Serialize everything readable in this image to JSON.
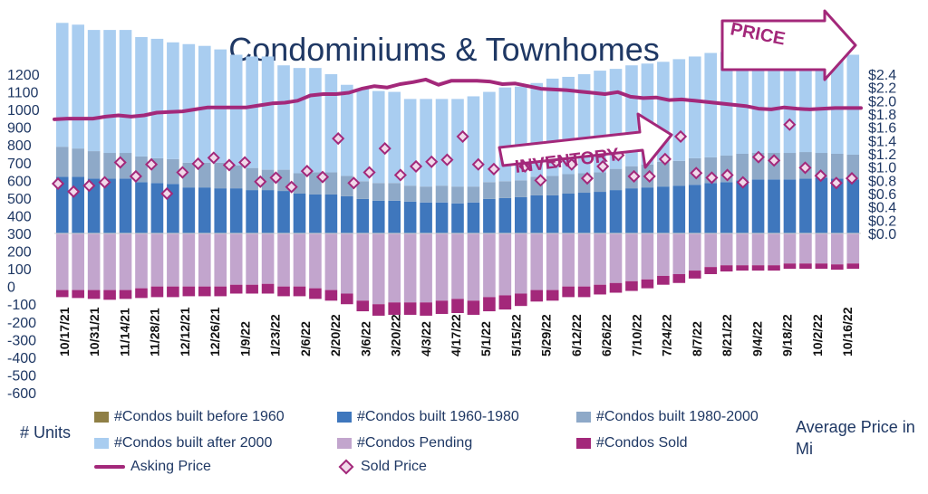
{
  "chart_data": {
    "type": "bar",
    "title": "Condominiums & Townhomes",
    "ylabel": "# Units",
    "y2label": "Average Price in Mi",
    "ylim": [
      -600,
      1200
    ],
    "y2lim": [
      0,
      2.4
    ],
    "yticks": [
      "1200",
      "1100",
      "1000",
      "900",
      "800",
      "700",
      "600",
      "500",
      "400",
      "300",
      "200",
      "100",
      "0",
      "-100",
      "-200",
      "-300",
      "-400",
      "-500",
      "-600"
    ],
    "y2ticks": [
      "$2.4",
      "$2.2",
      "$2.0",
      "$1.8",
      "$1.6",
      "$1.4",
      "$1.2",
      "$1.0",
      "$0.8",
      "$0.6",
      "$0.4",
      "$0.2",
      "$0.0"
    ],
    "xtick_labels": [
      "10/17/21",
      "10/31/21",
      "11/14/21",
      "11/28/21",
      "12/12/21",
      "12/26/21",
      "1/9/22",
      "1/23/22",
      "2/6/22",
      "2/20/22",
      "3/6/22",
      "3/20/22",
      "4/3/22",
      "4/17/22",
      "5/1/22",
      "5/15/22",
      "5/29/22",
      "6/12/22",
      "6/26/22",
      "7/10/22",
      "7/24/22",
      "8/7/22",
      "8/21/22",
      "9/4/22",
      "9/18/22",
      "10/2/22",
      "10/16/22"
    ],
    "series_names": {
      "before1960": "#Condos built before 1960",
      "y1960": "#Condos built 1960-1980",
      "y1980": "#Condos built 1980-2000",
      "after2000": "#Condos built after 2000",
      "pending": "#Condos Pending",
      "sold": "#Condos Sold",
      "asking": "Asking Price",
      "soldprice": "Sold Price"
    },
    "colors": {
      "before1960": "#8f7f45",
      "y1960": "#3f77bd",
      "y1980": "#8ea9c8",
      "after2000": "#a9cdf0",
      "pending": "#c2a5cd",
      "sold": "#a3287a",
      "asking": "#a3287a",
      "soldprice": "#a3287a"
    },
    "total_inventory": [
      1190,
      1180,
      1150,
      1150,
      1150,
      1110,
      1100,
      1080,
      1070,
      1060,
      1040,
      1010,
      1000,
      1000,
      950,
      935,
      935,
      900,
      840,
      820,
      805,
      800,
      760,
      760,
      760,
      760,
      775,
      800,
      825,
      830,
      850,
      875,
      885,
      900,
      920,
      930,
      950,
      960,
      970,
      985,
      1000,
      1020,
      1025,
      1020,
      1010,
      1010,
      1010,
      1020,
      1030,
      1020,
      1010
    ],
    "built_1960_1980": [
      320,
      320,
      310,
      310,
      310,
      290,
      285,
      280,
      260,
      260,
      255,
      255,
      245,
      245,
      240,
      225,
      220,
      220,
      210,
      195,
      185,
      185,
      180,
      175,
      175,
      170,
      175,
      195,
      200,
      205,
      215,
      215,
      225,
      230,
      235,
      245,
      255,
      260,
      265,
      270,
      275,
      285,
      290,
      300,
      305,
      305,
      305,
      310,
      315,
      310,
      305
    ],
    "built_1980_2000": [
      170,
      160,
      155,
      145,
      145,
      145,
      140,
      140,
      140,
      140,
      145,
      130,
      125,
      115,
      120,
      115,
      125,
      125,
      115,
      100,
      100,
      100,
      90,
      90,
      95,
      95,
      90,
      95,
      95,
      95,
      105,
      110,
      110,
      110,
      110,
      120,
      125,
      130,
      140,
      140,
      150,
      145,
      150,
      150,
      150,
      150,
      150,
      150,
      140,
      140,
      140
    ],
    "pending": [
      320,
      320,
      320,
      320,
      320,
      310,
      300,
      300,
      300,
      300,
      300,
      290,
      290,
      285,
      300,
      300,
      310,
      320,
      340,
      380,
      400,
      390,
      390,
      390,
      380,
      370,
      380,
      360,
      350,
      340,
      320,
      320,
      300,
      300,
      290,
      280,
      270,
      260,
      240,
      230,
      210,
      190,
      180,
      180,
      180,
      180,
      170,
      170,
      170,
      175,
      170
    ],
    "sold": [
      40,
      45,
      50,
      55,
      50,
      55,
      60,
      60,
      55,
      55,
      55,
      50,
      50,
      55,
      55,
      55,
      60,
      60,
      60,
      60,
      65,
      70,
      70,
      75,
      75,
      80,
      80,
      80,
      80,
      70,
      65,
      60,
      60,
      60,
      55,
      55,
      55,
      50,
      50,
      50,
      45,
      40,
      35,
      30,
      30,
      30,
      30,
      30,
      30,
      30,
      30
    ],
    "asking_price": [
      1.72,
      1.73,
      1.73,
      1.73,
      1.76,
      1.78,
      1.76,
      1.78,
      1.82,
      1.83,
      1.84,
      1.87,
      1.9,
      1.9,
      1.9,
      1.9,
      1.93,
      1.96,
      1.97,
      2.0,
      2.08,
      2.1,
      2.1,
      2.12,
      2.18,
      2.22,
      2.2,
      2.25,
      2.28,
      2.32,
      2.24,
      2.3,
      2.3,
      2.3,
      2.29,
      2.25,
      2.26,
      2.22,
      2.18,
      2.17,
      2.16,
      2.14,
      2.12,
      2.1,
      2.13,
      2.06,
      2.04,
      2.05,
      2.01,
      2.02,
      2.0,
      1.98,
      1.96,
      1.94,
      1.92,
      1.88,
      1.87,
      1.9,
      1.88,
      1.87,
      1.88,
      1.89,
      1.89,
      1.89
    ],
    "sold_price": [
      0.75,
      0.63,
      0.72,
      0.77,
      1.07,
      0.86,
      1.04,
      0.6,
      0.92,
      1.05,
      1.14,
      1.03,
      1.07,
      0.78,
      0.84,
      0.7,
      0.94,
      0.85,
      1.43,
      0.76,
      0.92,
      1.28,
      0.88,
      1.01,
      1.08,
      1.11,
      1.46,
      1.04,
      0.97,
      1.2,
      1.01,
      0.8,
      1.08,
      1.04,
      0.83,
      1.01,
      1.18,
      0.86,
      0.86,
      1.12,
      1.46,
      0.91,
      0.84,
      0.88,
      0.77,
      1.15,
      1.1,
      1.64,
      0.99,
      0.87,
      0.76,
      0.83
    ]
  },
  "annotations": {
    "price": "PRICE",
    "inventory": "INVENTORY"
  }
}
